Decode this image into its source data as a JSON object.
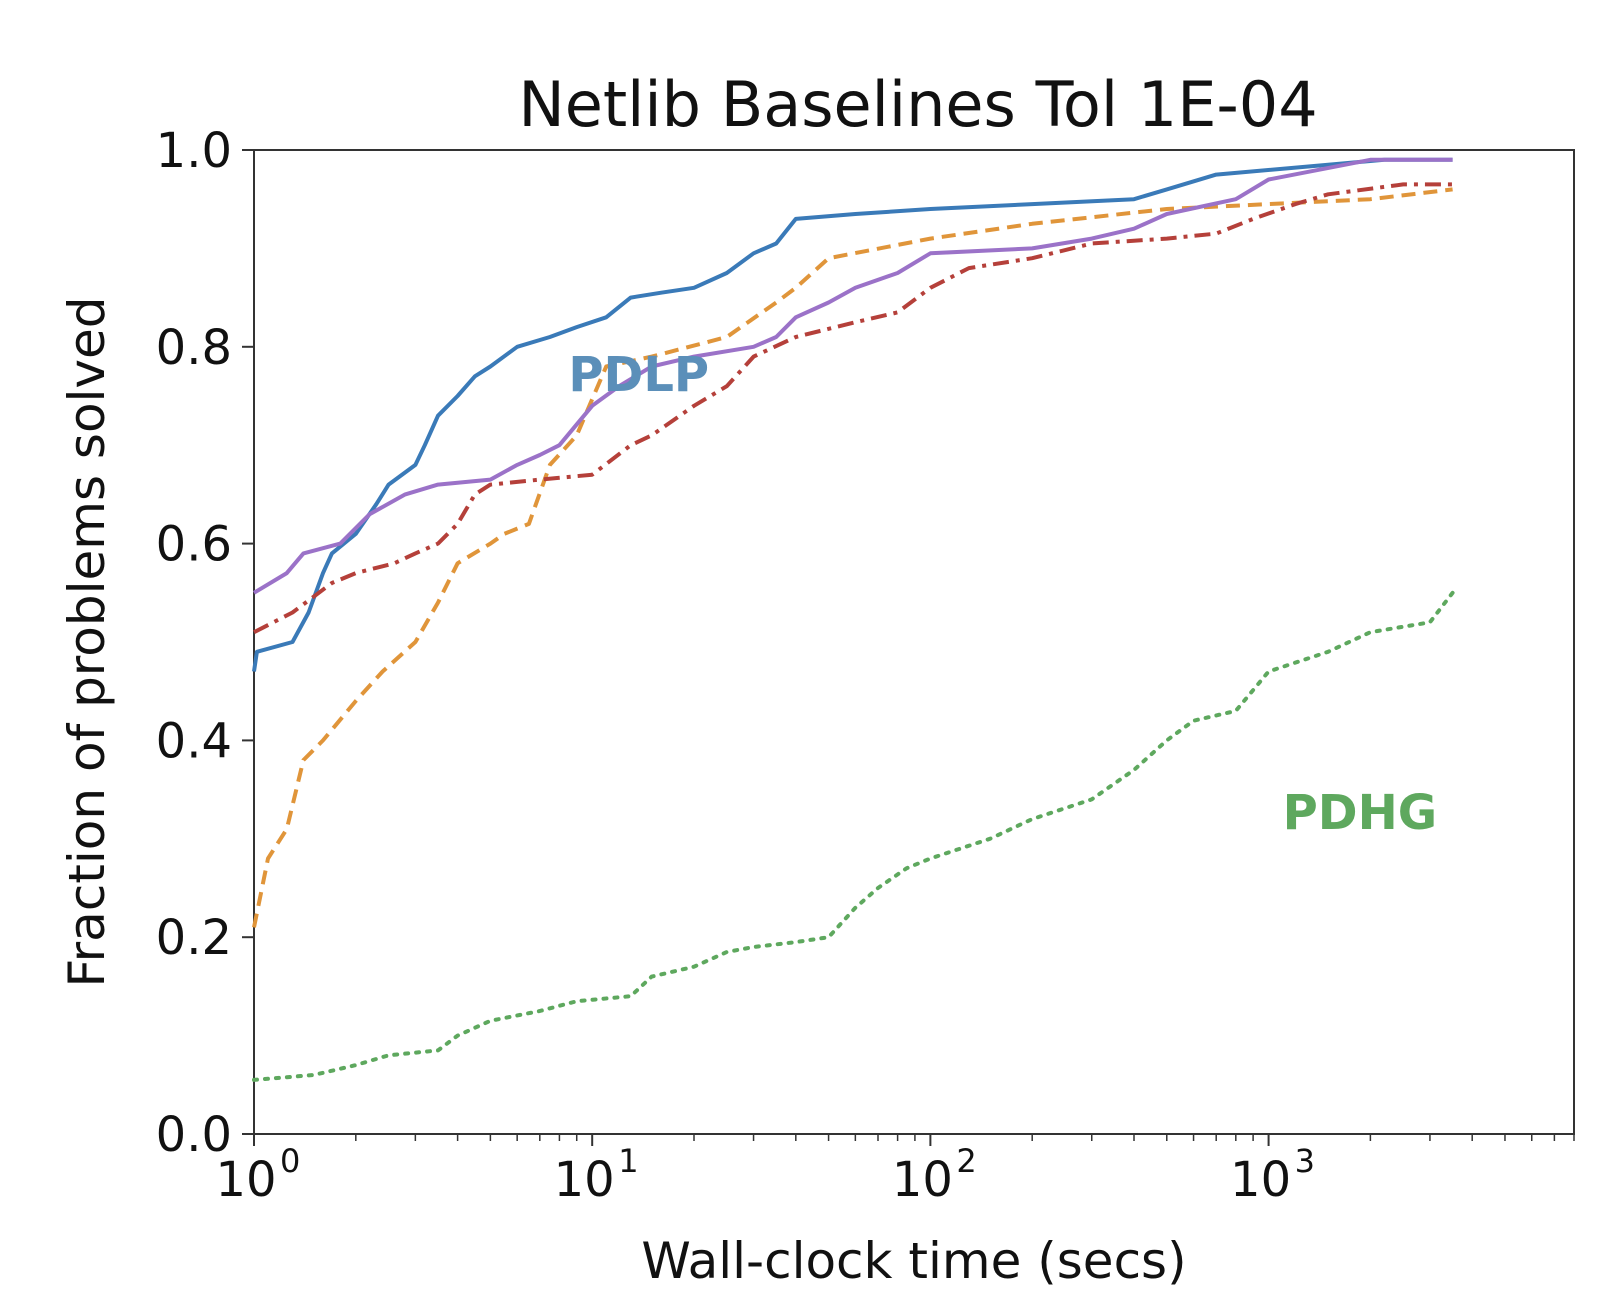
{
  "chart_data": {
    "type": "line",
    "title": "Netlib Baselines Tol 1E-04",
    "xlabel": "Wall-clock time (secs)",
    "ylabel": "Fraction of problems solved",
    "x_scale": "log",
    "xlim": [
      1,
      8000
    ],
    "ylim": [
      0,
      1.0
    ],
    "x_ticks": [
      {
        "value": 1,
        "base": "10",
        "exp": "0"
      },
      {
        "value": 10,
        "base": "10",
        "exp": "1"
      },
      {
        "value": 100,
        "base": "10",
        "exp": "2"
      },
      {
        "value": 1000,
        "base": "10",
        "exp": "3"
      }
    ],
    "y_ticks": [
      "0.0",
      "0.2",
      "0.4",
      "0.6",
      "0.8",
      "1.0"
    ],
    "grid": false,
    "annotations": [
      {
        "text": "PDLP",
        "x": 8.5,
        "y": 0.755,
        "color": "#5b8fb9"
      },
      {
        "text": "PDHG",
        "x": 1100,
        "y": 0.31,
        "color": "#5ea85e"
      }
    ],
    "series": [
      {
        "color": "#3a7ab8",
        "style": "solid",
        "points": [
          [
            1,
            0.47
          ],
          [
            1.02,
            0.49
          ],
          [
            1.3,
            0.5
          ],
          [
            1.45,
            0.53
          ],
          [
            1.6,
            0.57
          ],
          [
            1.7,
            0.59
          ],
          [
            2.0,
            0.61
          ],
          [
            2.3,
            0.64
          ],
          [
            2.5,
            0.66
          ],
          [
            3.0,
            0.68
          ],
          [
            3.2,
            0.7
          ],
          [
            3.5,
            0.73
          ],
          [
            4.0,
            0.75
          ],
          [
            4.5,
            0.77
          ],
          [
            5.0,
            0.78
          ],
          [
            6.0,
            0.8
          ],
          [
            7.5,
            0.81
          ],
          [
            9.0,
            0.82
          ],
          [
            11.0,
            0.83
          ],
          [
            13.0,
            0.85
          ],
          [
            16.0,
            0.855
          ],
          [
            20.0,
            0.86
          ],
          [
            25.0,
            0.875
          ],
          [
            30.0,
            0.895
          ],
          [
            35.0,
            0.905
          ],
          [
            40.0,
            0.93
          ],
          [
            60.0,
            0.935
          ],
          [
            100.0,
            0.94
          ],
          [
            200.0,
            0.945
          ],
          [
            400.0,
            0.95
          ],
          [
            500.0,
            0.96
          ],
          [
            700.0,
            0.975
          ],
          [
            1500.0,
            0.985
          ],
          [
            2200.0,
            0.99
          ],
          [
            3500.0,
            0.99
          ]
        ]
      },
      {
        "color": "#e0953a",
        "style": "dashed",
        "points": [
          [
            1,
            0.21
          ],
          [
            1.1,
            0.28
          ],
          [
            1.25,
            0.31
          ],
          [
            1.4,
            0.38
          ],
          [
            1.6,
            0.4
          ],
          [
            2.0,
            0.44
          ],
          [
            2.4,
            0.47
          ],
          [
            3.0,
            0.5
          ],
          [
            3.5,
            0.54
          ],
          [
            4.0,
            0.58
          ],
          [
            5.0,
            0.6
          ],
          [
            5.5,
            0.61
          ],
          [
            6.5,
            0.62
          ],
          [
            7.5,
            0.68
          ],
          [
            9.0,
            0.71
          ],
          [
            11.0,
            0.78
          ],
          [
            15.0,
            0.79
          ],
          [
            25.0,
            0.81
          ],
          [
            35.0,
            0.845
          ],
          [
            40.0,
            0.86
          ],
          [
            50.0,
            0.89
          ],
          [
            100.0,
            0.91
          ],
          [
            200.0,
            0.925
          ],
          [
            500.0,
            0.94
          ],
          [
            1000.0,
            0.945
          ],
          [
            2000.0,
            0.95
          ],
          [
            3500.0,
            0.96
          ]
        ]
      },
      {
        "color": "#9b72c8",
        "style": "solid",
        "points": [
          [
            1,
            0.55
          ],
          [
            1.25,
            0.57
          ],
          [
            1.4,
            0.59
          ],
          [
            1.8,
            0.6
          ],
          [
            2.2,
            0.63
          ],
          [
            2.8,
            0.65
          ],
          [
            3.5,
            0.66
          ],
          [
            5.0,
            0.665
          ],
          [
            6.0,
            0.68
          ],
          [
            7.0,
            0.69
          ],
          [
            8.0,
            0.7
          ],
          [
            10.0,
            0.74
          ],
          [
            12.0,
            0.76
          ],
          [
            15.0,
            0.78
          ],
          [
            20.0,
            0.79
          ],
          [
            30.0,
            0.8
          ],
          [
            35.0,
            0.81
          ],
          [
            40.0,
            0.83
          ],
          [
            50.0,
            0.845
          ],
          [
            60.0,
            0.86
          ],
          [
            80.0,
            0.875
          ],
          [
            100.0,
            0.895
          ],
          [
            200.0,
            0.9
          ],
          [
            300.0,
            0.91
          ],
          [
            400.0,
            0.92
          ],
          [
            500.0,
            0.935
          ],
          [
            800.0,
            0.95
          ],
          [
            1000.0,
            0.97
          ],
          [
            2000.0,
            0.99
          ],
          [
            3500.0,
            0.99
          ]
        ]
      },
      {
        "color": "#b5403a",
        "style": "dashdot",
        "points": [
          [
            1,
            0.51
          ],
          [
            1.3,
            0.53
          ],
          [
            1.7,
            0.56
          ],
          [
            2.0,
            0.57
          ],
          [
            2.6,
            0.58
          ],
          [
            3.0,
            0.59
          ],
          [
            3.5,
            0.6
          ],
          [
            4.0,
            0.62
          ],
          [
            4.5,
            0.65
          ],
          [
            5.0,
            0.66
          ],
          [
            7.0,
            0.665
          ],
          [
            10.0,
            0.67
          ],
          [
            13.0,
            0.7
          ],
          [
            15.0,
            0.71
          ],
          [
            20.0,
            0.74
          ],
          [
            25.0,
            0.76
          ],
          [
            30.0,
            0.79
          ],
          [
            40.0,
            0.81
          ],
          [
            60.0,
            0.825
          ],
          [
            80.0,
            0.835
          ],
          [
            100.0,
            0.86
          ],
          [
            130.0,
            0.88
          ],
          [
            200.0,
            0.89
          ],
          [
            300.0,
            0.905
          ],
          [
            500.0,
            0.91
          ],
          [
            700.0,
            0.915
          ],
          [
            900.0,
            0.93
          ],
          [
            1200.0,
            0.945
          ],
          [
            1500.0,
            0.955
          ],
          [
            2500.0,
            0.965
          ],
          [
            3500.0,
            0.965
          ]
        ]
      },
      {
        "color": "#5ea85e",
        "style": "dotted",
        "points": [
          [
            1,
            0.055
          ],
          [
            1.5,
            0.06
          ],
          [
            2.0,
            0.07
          ],
          [
            2.5,
            0.08
          ],
          [
            3.5,
            0.085
          ],
          [
            4.0,
            0.1
          ],
          [
            5.0,
            0.115
          ],
          [
            7.0,
            0.125
          ],
          [
            9.0,
            0.135
          ],
          [
            13.0,
            0.14
          ],
          [
            15.0,
            0.16
          ],
          [
            20.0,
            0.17
          ],
          [
            25.0,
            0.185
          ],
          [
            30.0,
            0.19
          ],
          [
            40.0,
            0.195
          ],
          [
            50.0,
            0.2
          ],
          [
            60.0,
            0.23
          ],
          [
            70.0,
            0.25
          ],
          [
            85.0,
            0.27
          ],
          [
            100.0,
            0.28
          ],
          [
            150.0,
            0.3
          ],
          [
            200.0,
            0.32
          ],
          [
            300.0,
            0.34
          ],
          [
            400.0,
            0.37
          ],
          [
            500.0,
            0.4
          ],
          [
            600.0,
            0.42
          ],
          [
            800.0,
            0.43
          ],
          [
            1000.0,
            0.47
          ],
          [
            1500.0,
            0.49
          ],
          [
            2000.0,
            0.51
          ],
          [
            3000.0,
            0.52
          ],
          [
            3500.0,
            0.55
          ]
        ]
      }
    ]
  }
}
